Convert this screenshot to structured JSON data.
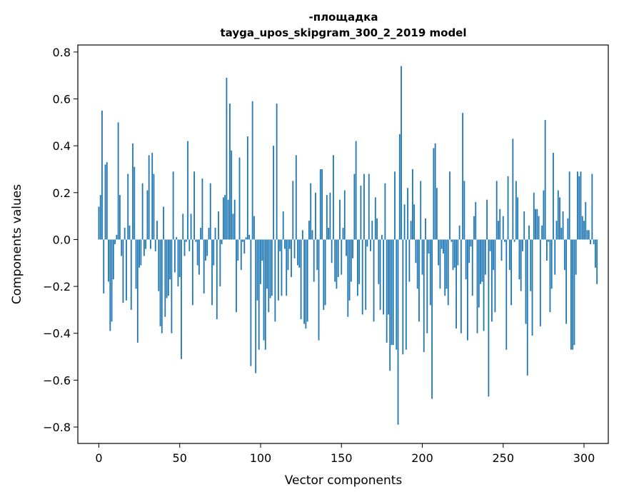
{
  "chart_data": {
    "type": "bar",
    "title_lines": [
      "-площадка",
      "tayga_upos_skipgram_300_2_2019 model"
    ],
    "xlabel": "Vector components",
    "ylabel": "Components values",
    "xlim": [
      -13,
      315
    ],
    "ylim": [
      -0.87,
      0.83
    ],
    "xticks": [
      0,
      50,
      100,
      150,
      200,
      250,
      300
    ],
    "yticks": [
      -0.8,
      -0.6,
      -0.4,
      -0.2,
      0.0,
      0.2,
      0.4,
      0.6,
      0.8
    ],
    "xtick_labels": [
      "0",
      "50",
      "100",
      "150",
      "200",
      "250",
      "300"
    ],
    "ytick_labels": [
      "−0.8",
      "−0.6",
      "−0.4",
      "−0.2",
      "0.0",
      "0.2",
      "0.4",
      "0.6",
      "0.8"
    ],
    "bar_color": "#1f77b4",
    "values": [
      0.14,
      0.19,
      0.55,
      -0.23,
      0.32,
      0.33,
      -0.18,
      -0.39,
      -0.35,
      -0.17,
      -0.02,
      0.02,
      0.5,
      0.19,
      -0.07,
      -0.27,
      0.05,
      -0.26,
      0.28,
      0.06,
      -0.3,
      0.41,
      0.31,
      -0.21,
      -0.44,
      -0.12,
      -0.11,
      0.24,
      -0.07,
      -0.04,
      0.21,
      0.36,
      -0.04,
      0.37,
      0.28,
      -0.05,
      0.08,
      -0.22,
      -0.37,
      -0.4,
      0.14,
      -0.33,
      -0.25,
      -0.24,
      -0.17,
      -0.4,
      0.29,
      -0.14,
      0.01,
      -0.2,
      -0.16,
      -0.51,
      0.11,
      -0.07,
      -0.01,
      0.42,
      -0.05,
      0.11,
      -0.28,
      0.29,
      -0.01,
      -0.11,
      -0.15,
      0.05,
      0.26,
      -0.23,
      -0.09,
      -0.07,
      0.05,
      0.24,
      -0.28,
      -0.11,
      0.05,
      -0.34,
      0.12,
      -0.2,
      -0.02,
      0.18,
      0.19,
      0.69,
      0.17,
      0.58,
      0.38,
      0.11,
      0.17,
      -0.31,
      -0.09,
      0.35,
      -0.13,
      -0.01,
      -0.06,
      0.01,
      0.44,
      0.02,
      -0.54,
      0.59,
      0.1,
      -0.57,
      -0.26,
      -0.47,
      -0.19,
      -0.09,
      -0.43,
      -0.47,
      -0.21,
      -0.31,
      -0.25,
      -0.24,
      0.4,
      -0.35,
      0.58,
      -0.26,
      -0.05,
      -0.24,
      0.12,
      -0.04,
      -0.24,
      -0.13,
      -0.04,
      -0.16,
      0.25,
      -0.08,
      0.36,
      -0.11,
      -0.12,
      -0.34,
      0.04,
      -0.36,
      -0.38,
      -0.35,
      0.08,
      0.24,
      0.04,
      -0.18,
      0.2,
      -0.13,
      -0.43,
      0.3,
      0.3,
      -0.3,
      -0.28,
      0.19,
      0.05,
      0.2,
      -0.1,
      0.36,
      -0.18,
      -0.21,
      -0.16,
      0.17,
      -0.15,
      0.05,
      0.21,
      -0.07,
      -0.33,
      -0.26,
      -0.18,
      -0.08,
      0.28,
      0.42,
      -0.24,
      -0.19,
      0.23,
      -0.32,
      0.28,
      -0.3,
      -0.03,
      0.28,
      -0.05,
      0.08,
      -0.35,
      0.18,
      0.09,
      -0.19,
      -0.3,
      0.02,
      -0.32,
      0.24,
      -0.44,
      -0.32,
      -0.56,
      -0.45,
      -0.45,
      0.29,
      -0.47,
      -0.79,
      0.45,
      0.74,
      -0.49,
      0.15,
      -0.47,
      0.22,
      -0.18,
      0.08,
      0.3,
      0.15,
      -0.1,
      -0.21,
      -0.35,
      0.25,
      -0.15,
      -0.48,
      0.09,
      -0.4,
      -0.06,
      -0.28,
      -0.68,
      0.39,
      0.41,
      0.22,
      -0.11,
      -0.21,
      -0.04,
      -0.06,
      -0.24,
      -0.21,
      -0.28,
      0.29,
      -0.01,
      -0.13,
      -0.12,
      -0.38,
      -0.11,
      0.06,
      -0.4,
      0.54,
      0.25,
      -0.17,
      -0.43,
      -0.1,
      -0.03,
      -0.24,
      0.1,
      0.16,
      -0.4,
      -0.29,
      -0.19,
      -0.18,
      -0.39,
      -0.15,
      0.17,
      -0.67,
      -0.05,
      -0.35,
      -0.13,
      -0.31,
      0.25,
      0.08,
      0.13,
      -0.09,
      0.1,
      -0.01,
      -0.47,
      0.27,
      -0.13,
      -0.28,
      0.43,
      -0.01,
      0.25,
      0.18,
      -0.17,
      -0.22,
      -0.05,
      0.12,
      -0.36,
      -0.58,
      0.06,
      -0.22,
      -0.41,
      0.2,
      0.13,
      0.13,
      0.1,
      -0.37,
      0.06,
      0.21,
      0.51,
      -0.09,
      -0.01,
      -0.31,
      -0.21,
      0.37,
      -0.15,
      0.08,
      0.21,
      0.18,
      0.05,
      0.12,
      -0.13,
      -0.36,
      0.09,
      0.29,
      -0.47,
      -0.47,
      -0.45,
      -0.15,
      0.29,
      0.27,
      0.29,
      0.1,
      0.08,
      0.16,
      0.04,
      0.04,
      -0.02,
      0.28,
      -0.02,
      -0.12,
      -0.19
    ]
  }
}
